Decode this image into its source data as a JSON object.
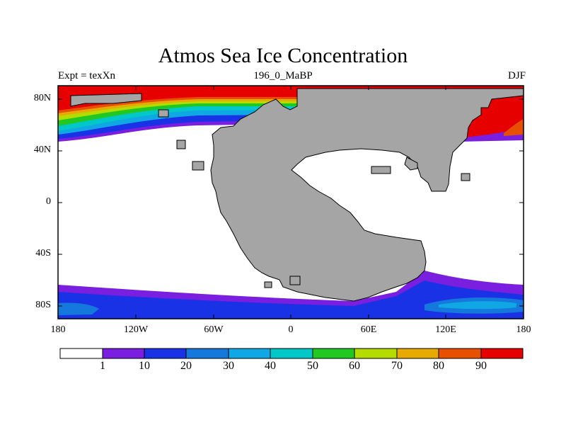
{
  "map": {
    "title": "Atmos Sea Ice Concentration",
    "left_label": "Expt = texXn",
    "center_label": "196_0_MaBP",
    "right_label": "DJF",
    "lat_ticks": [
      "80N",
      "40N",
      "0",
      "40S",
      "80S"
    ],
    "lon_ticks": [
      "180",
      "120W",
      "60W",
      "0",
      "60E",
      "120E",
      "180"
    ],
    "land_color": "#a5a5a5"
  },
  "colorbar": {
    "labels": [
      "1",
      "10",
      "20",
      "30",
      "40",
      "50",
      "60",
      "70",
      "80",
      "90"
    ],
    "colors": [
      "#ffffff",
      "#7a1ee0",
      "#1a32e6",
      "#1478dc",
      "#10a8e4",
      "#00c8c8",
      "#22c822",
      "#b4dc00",
      "#e6aa00",
      "#e65000",
      "#e60000"
    ]
  }
}
